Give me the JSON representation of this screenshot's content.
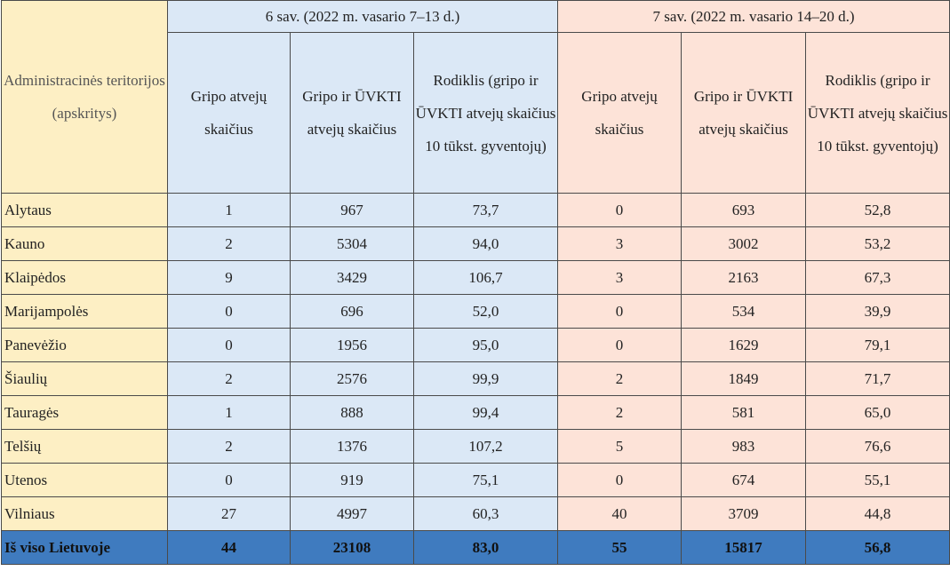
{
  "header": {
    "territory_label": "Administracinės teritorijos (apskritys)",
    "week6_label": "6 sav. (2022 m. vasario 7–13 d.)",
    "week7_label": "7 sav. (2022 m. vasario 14–20 d.)",
    "col_flu": "Gripo atvejų skaičius",
    "col_flu_ari": "Gripo ir ŪVKTI atvejų skaičius",
    "col_rate": "Rodiklis (gripo ir ŪVKTI atvejų skaičius 10 tūkst. gyventojų)"
  },
  "rows": [
    {
      "name": "Alytaus",
      "w6_flu": "1",
      "w6_ari": "967",
      "w6_rate": "73,7",
      "w7_flu": "0",
      "w7_ari": "693",
      "w7_rate": "52,8"
    },
    {
      "name": "Kauno",
      "w6_flu": "2",
      "w6_ari": "5304",
      "w6_rate": "94,0",
      "w7_flu": "3",
      "w7_ari": "3002",
      "w7_rate": "53,2"
    },
    {
      "name": "Klaipėdos",
      "w6_flu": "9",
      "w6_ari": "3429",
      "w6_rate": "106,7",
      "w7_flu": "3",
      "w7_ari": "2163",
      "w7_rate": "67,3"
    },
    {
      "name": "Marijampolės",
      "w6_flu": "0",
      "w6_ari": "696",
      "w6_rate": "52,0",
      "w7_flu": "0",
      "w7_ari": "534",
      "w7_rate": "39,9"
    },
    {
      "name": "Panevėžio",
      "w6_flu": "0",
      "w6_ari": "1956",
      "w6_rate": "95,0",
      "w7_flu": "0",
      "w7_ari": "1629",
      "w7_rate": "79,1"
    },
    {
      "name": "Šiaulių",
      "w6_flu": "2",
      "w6_ari": "2576",
      "w6_rate": "99,9",
      "w7_flu": "2",
      "w7_ari": "1849",
      "w7_rate": "71,7"
    },
    {
      "name": "Tauragės",
      "w6_flu": "1",
      "w6_ari": "888",
      "w6_rate": "99,4",
      "w7_flu": "2",
      "w7_ari": "581",
      "w7_rate": "65,0"
    },
    {
      "name": "Telšių",
      "w6_flu": "2",
      "w6_ari": "1376",
      "w6_rate": "107,2",
      "w7_flu": "5",
      "w7_ari": "983",
      "w7_rate": "76,6"
    },
    {
      "name": "Utenos",
      "w6_flu": "0",
      "w6_ari": "919",
      "w6_rate": "75,1",
      "w7_flu": "0",
      "w7_ari": "674",
      "w7_rate": "55,1"
    },
    {
      "name": "Vilniaus",
      "w6_flu": "27",
      "w6_ari": "4997",
      "w6_rate": "60,3",
      "w7_flu": "40",
      "w7_ari": "3709",
      "w7_rate": "44,8"
    }
  ],
  "total": {
    "name": "Iš viso Lietuvoje",
    "w6_flu": "44",
    "w6_ari": "23108",
    "w6_rate": "83,0",
    "w7_flu": "55",
    "w7_ari": "15817",
    "w7_rate": "56,8"
  },
  "colors": {
    "territory_bg": "#fdefc4",
    "week6_bg": "#dbe8f6",
    "week7_bg": "#fde3d8",
    "total_bg": "#3f7bbf"
  }
}
